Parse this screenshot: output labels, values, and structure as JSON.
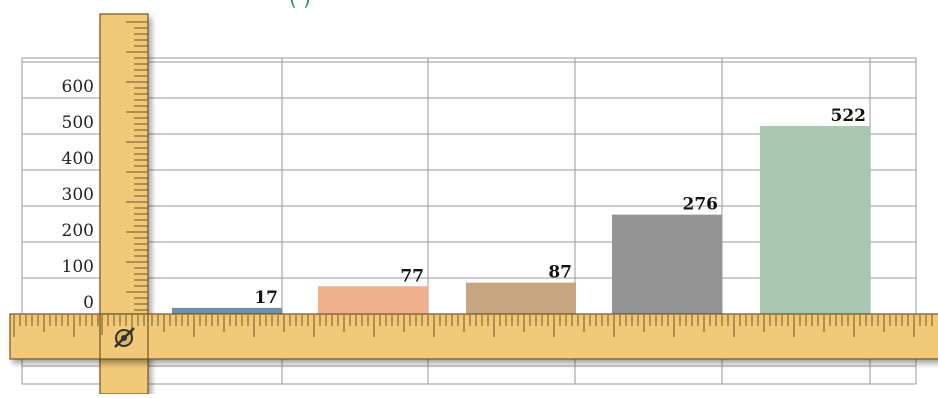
{
  "header": {
    "title_fragment": "(                )"
  },
  "colors": {
    "ruler_fill": "#f2c978",
    "ruler_edge": "#6e5422",
    "grid": "#9a9a9a",
    "bars": [
      "#6f8fa8",
      "#efb08e",
      "#c6a680",
      "#949494",
      "#a7c7b0"
    ]
  },
  "chart_data": {
    "type": "bar",
    "title": "",
    "xlabel": "",
    "ylabel": "",
    "categories": [
      "",
      "",
      "",
      "",
      ""
    ],
    "values": [
      17,
      77,
      87,
      276,
      522
    ],
    "value_labels": [
      "17",
      "77",
      "87",
      "276",
      "522"
    ],
    "y_ticks": [
      "0",
      "100",
      "200",
      "300",
      "400",
      "500",
      "600"
    ],
    "ylim": [
      0,
      600
    ],
    "grid": true,
    "legend": "none"
  }
}
